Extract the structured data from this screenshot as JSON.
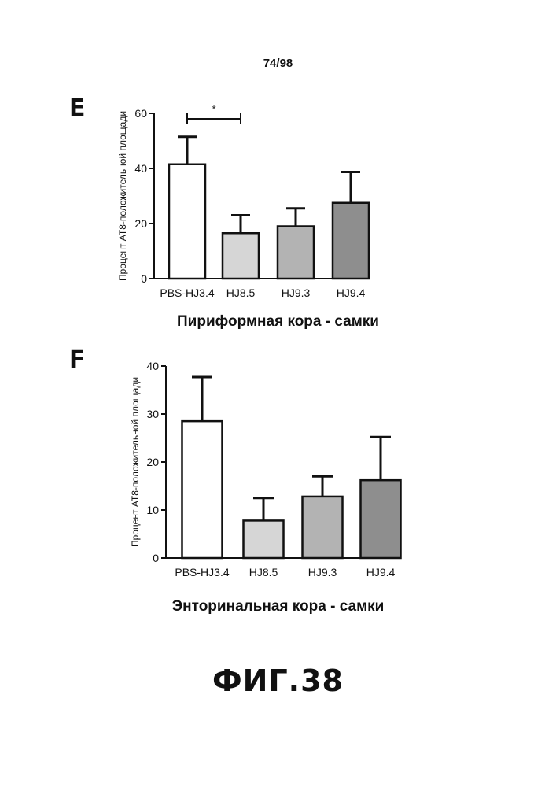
{
  "page_number": "74/98",
  "figure_caption": "ФИГ.38",
  "chart_data": [
    {
      "type": "bar",
      "panel_label": "E",
      "title": "Пириформная кора - самки",
      "ylabel": "Процент AT8-положительной площади",
      "xlabel": "",
      "categories": [
        "PBS-HJ3.4",
        "HJ8.5",
        "HJ9.3",
        "HJ9.4"
      ],
      "values": [
        41.5,
        16.5,
        19,
        27.5
      ],
      "errors": [
        10,
        6.5,
        6.5,
        11.2
      ],
      "fills": [
        "#ffffff",
        "#d6d6d6",
        "#b3b3b3",
        "#8e8e8e"
      ],
      "ylim": [
        0,
        60
      ],
      "yticks": [
        "0",
        "20",
        "40",
        "60"
      ],
      "grid": false,
      "annotations": [
        {
          "text": "*",
          "from": "PBS-HJ3.4",
          "to": "HJ8.5",
          "y": 58
        }
      ]
    },
    {
      "type": "bar",
      "panel_label": "F",
      "title": "Энторинальная кора - самки",
      "ylabel": "Процент AT8-положительной площади",
      "xlabel": "",
      "categories": [
        "PBS-HJ3.4",
        "HJ8.5",
        "HJ9.3",
        "HJ9.4"
      ],
      "values": [
        28.5,
        7.8,
        12.8,
        16.2
      ],
      "errors": [
        9.2,
        4.7,
        4.2,
        9
      ],
      "fills": [
        "#ffffff",
        "#d6d6d6",
        "#b3b3b3",
        "#8e8e8e"
      ],
      "ylim": [
        0,
        40
      ],
      "yticks": [
        "0",
        "10",
        "20",
        "30",
        "40"
      ],
      "grid": false,
      "annotations": []
    }
  ]
}
